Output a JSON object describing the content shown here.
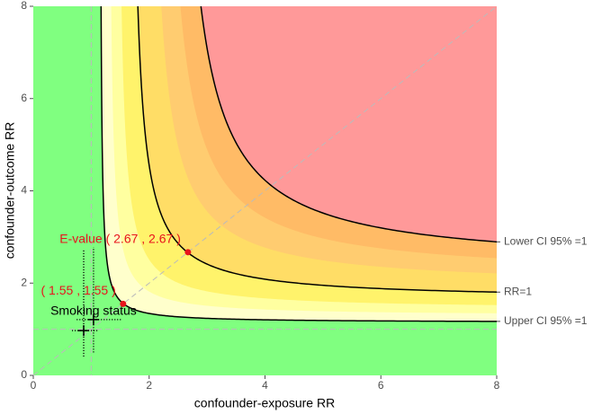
{
  "chart_data": {
    "type": "contour",
    "x_label": "confounder-exposure RR",
    "y_label": "confounder-outcome RR",
    "xlim": [
      0,
      8
    ],
    "ylim": [
      0,
      8
    ],
    "xticks": [
      0,
      2,
      4,
      6,
      8
    ],
    "yticks": [
      0,
      2,
      4,
      6,
      8
    ],
    "background_color": "#80ff80",
    "bands": [
      {
        "level": 1.146,
        "color": "#ffffcc"
      },
      {
        "level": 1.29,
        "color": "#ffffa0"
      },
      {
        "level": 1.43,
        "color": "#fff36b"
      },
      {
        "level": 1.64,
        "color": "#ffdd66"
      },
      {
        "level": 1.92,
        "color": "#ffcc70"
      },
      {
        "level": 2.13,
        "color": "#ffbb66"
      },
      {
        "level": 2.34,
        "color": "#ff9999"
      }
    ],
    "curves": [
      {
        "name": "Lower CI 95% =1",
        "rr": 2.34
      },
      {
        "name": "RR=1",
        "rr": 1.64
      },
      {
        "name": "Upper CI 95% =1",
        "rr": 1.146
      }
    ],
    "null_value": 1,
    "points": [
      {
        "x": 2.67,
        "y": 2.67,
        "label": "E-value ( 2.67 , 2.67 )"
      },
      {
        "x": 1.55,
        "y": 1.55,
        "label": "( 1.55 , 1.55 )"
      }
    ],
    "point_color": "#e8141c",
    "benchmark_label": "Smoking status",
    "benchmarks": [
      {
        "x": 1.04,
        "y": 1.21,
        "x_low": 0.75,
        "x_high": 1.52,
        "y_low": 0.5,
        "y_high": 2.78
      },
      {
        "x": 0.87,
        "y": 0.97,
        "x_low": 0.67,
        "x_high": 1.13,
        "y_low": 0.41,
        "y_high": 2.74
      }
    ]
  }
}
